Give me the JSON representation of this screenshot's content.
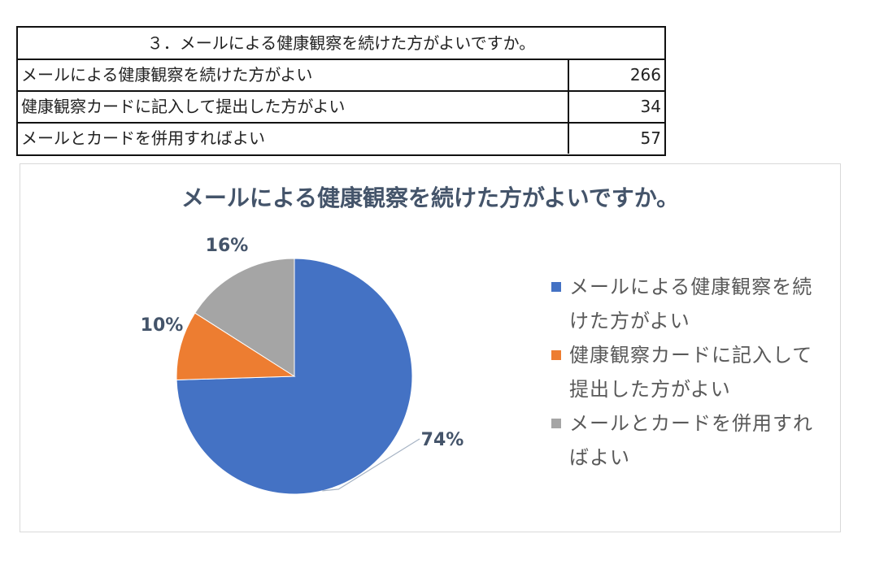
{
  "table": {
    "title": "３．メールによる健康観察を続けた方がよいですか。",
    "rows": [
      {
        "label": "メールによる健康観察を続けた方がよい",
        "value": "266"
      },
      {
        "label": "健康観察カードに記入して提出した方がよい",
        "value": "34"
      },
      {
        "label": "メールとカードを併用すればよい",
        "value": "57"
      }
    ]
  },
  "chart_data": {
    "type": "pie",
    "title": "メールによる健康観察を続けた方がよいですか。",
    "categories": [
      "メールによる健康観察を続けた方がよい",
      "健康観察カードに記入して提出した方がよい",
      "メールとカードを併用すればよい"
    ],
    "values": [
      266,
      34,
      57
    ],
    "data_labels": [
      "74%",
      "10%",
      "16%"
    ],
    "colors": [
      "#4472c4",
      "#ed7d31",
      "#a5a5a5"
    ],
    "legend_position": "right",
    "start_angle_deg": 0,
    "direction": "clockwise"
  },
  "legend": {
    "items": [
      {
        "line1": "メールによる健康観察を続",
        "line2": "けた方がよい"
      },
      {
        "line1": "健康観察カードに記入して",
        "line2": "提出した方がよい"
      },
      {
        "line1": "メールとカードを併用すれ",
        "line2": "ばよい"
      }
    ]
  }
}
